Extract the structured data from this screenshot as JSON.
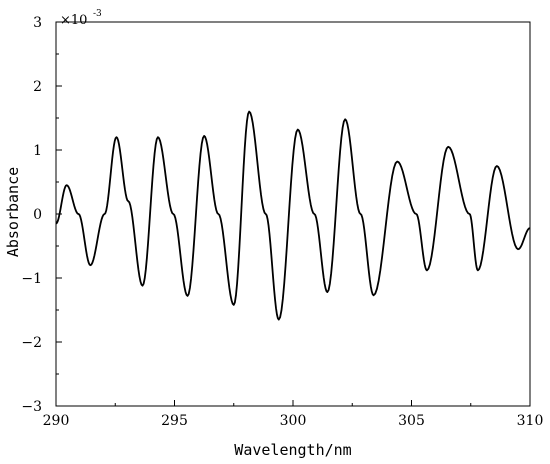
{
  "chart_data": {
    "type": "line",
    "title": "",
    "xlabel": "Wavelength/nm",
    "ylabel": "Absorbance",
    "y_multiplier_label": "×10",
    "y_multiplier_exponent": "-3",
    "xlim": [
      290,
      310
    ],
    "ylim": [
      -3,
      3
    ],
    "x_ticks": [
      290,
      295,
      300,
      305,
      310
    ],
    "y_ticks": [
      -3,
      -2,
      -1,
      0,
      1,
      2,
      3
    ],
    "x_tick_labels": [
      "290",
      "295",
      "300",
      "305",
      "310"
    ],
    "y_tick_labels": [
      "−3",
      "−2",
      "−1",
      "0",
      "1",
      "2",
      "3"
    ],
    "grid": false,
    "legend": "none",
    "line_color": "#000000",
    "series": [
      {
        "x": [
          290.0,
          290.45,
          290.95,
          291.45,
          292.05,
          292.55,
          293.05,
          293.65,
          294.3,
          294.95,
          295.55,
          296.25,
          296.85,
          297.5,
          298.15,
          298.85,
          299.4,
          300.2,
          300.9,
          301.45,
          302.2,
          302.85,
          303.4,
          304.4,
          305.2,
          305.65,
          306.55,
          307.45,
          307.8,
          308.6,
          309.5,
          310.0
        ],
        "y": [
          -0.15,
          0.45,
          0.0,
          -0.8,
          0.0,
          1.2,
          0.2,
          -1.12,
          1.2,
          0.0,
          -1.28,
          1.22,
          0.0,
          -1.42,
          1.6,
          0.0,
          -1.65,
          1.32,
          0.0,
          -1.22,
          1.48,
          0.0,
          -1.27,
          0.82,
          0.0,
          -0.88,
          1.05,
          0.0,
          -0.88,
          0.75,
          -0.55,
          -0.22
        ]
      }
    ]
  }
}
